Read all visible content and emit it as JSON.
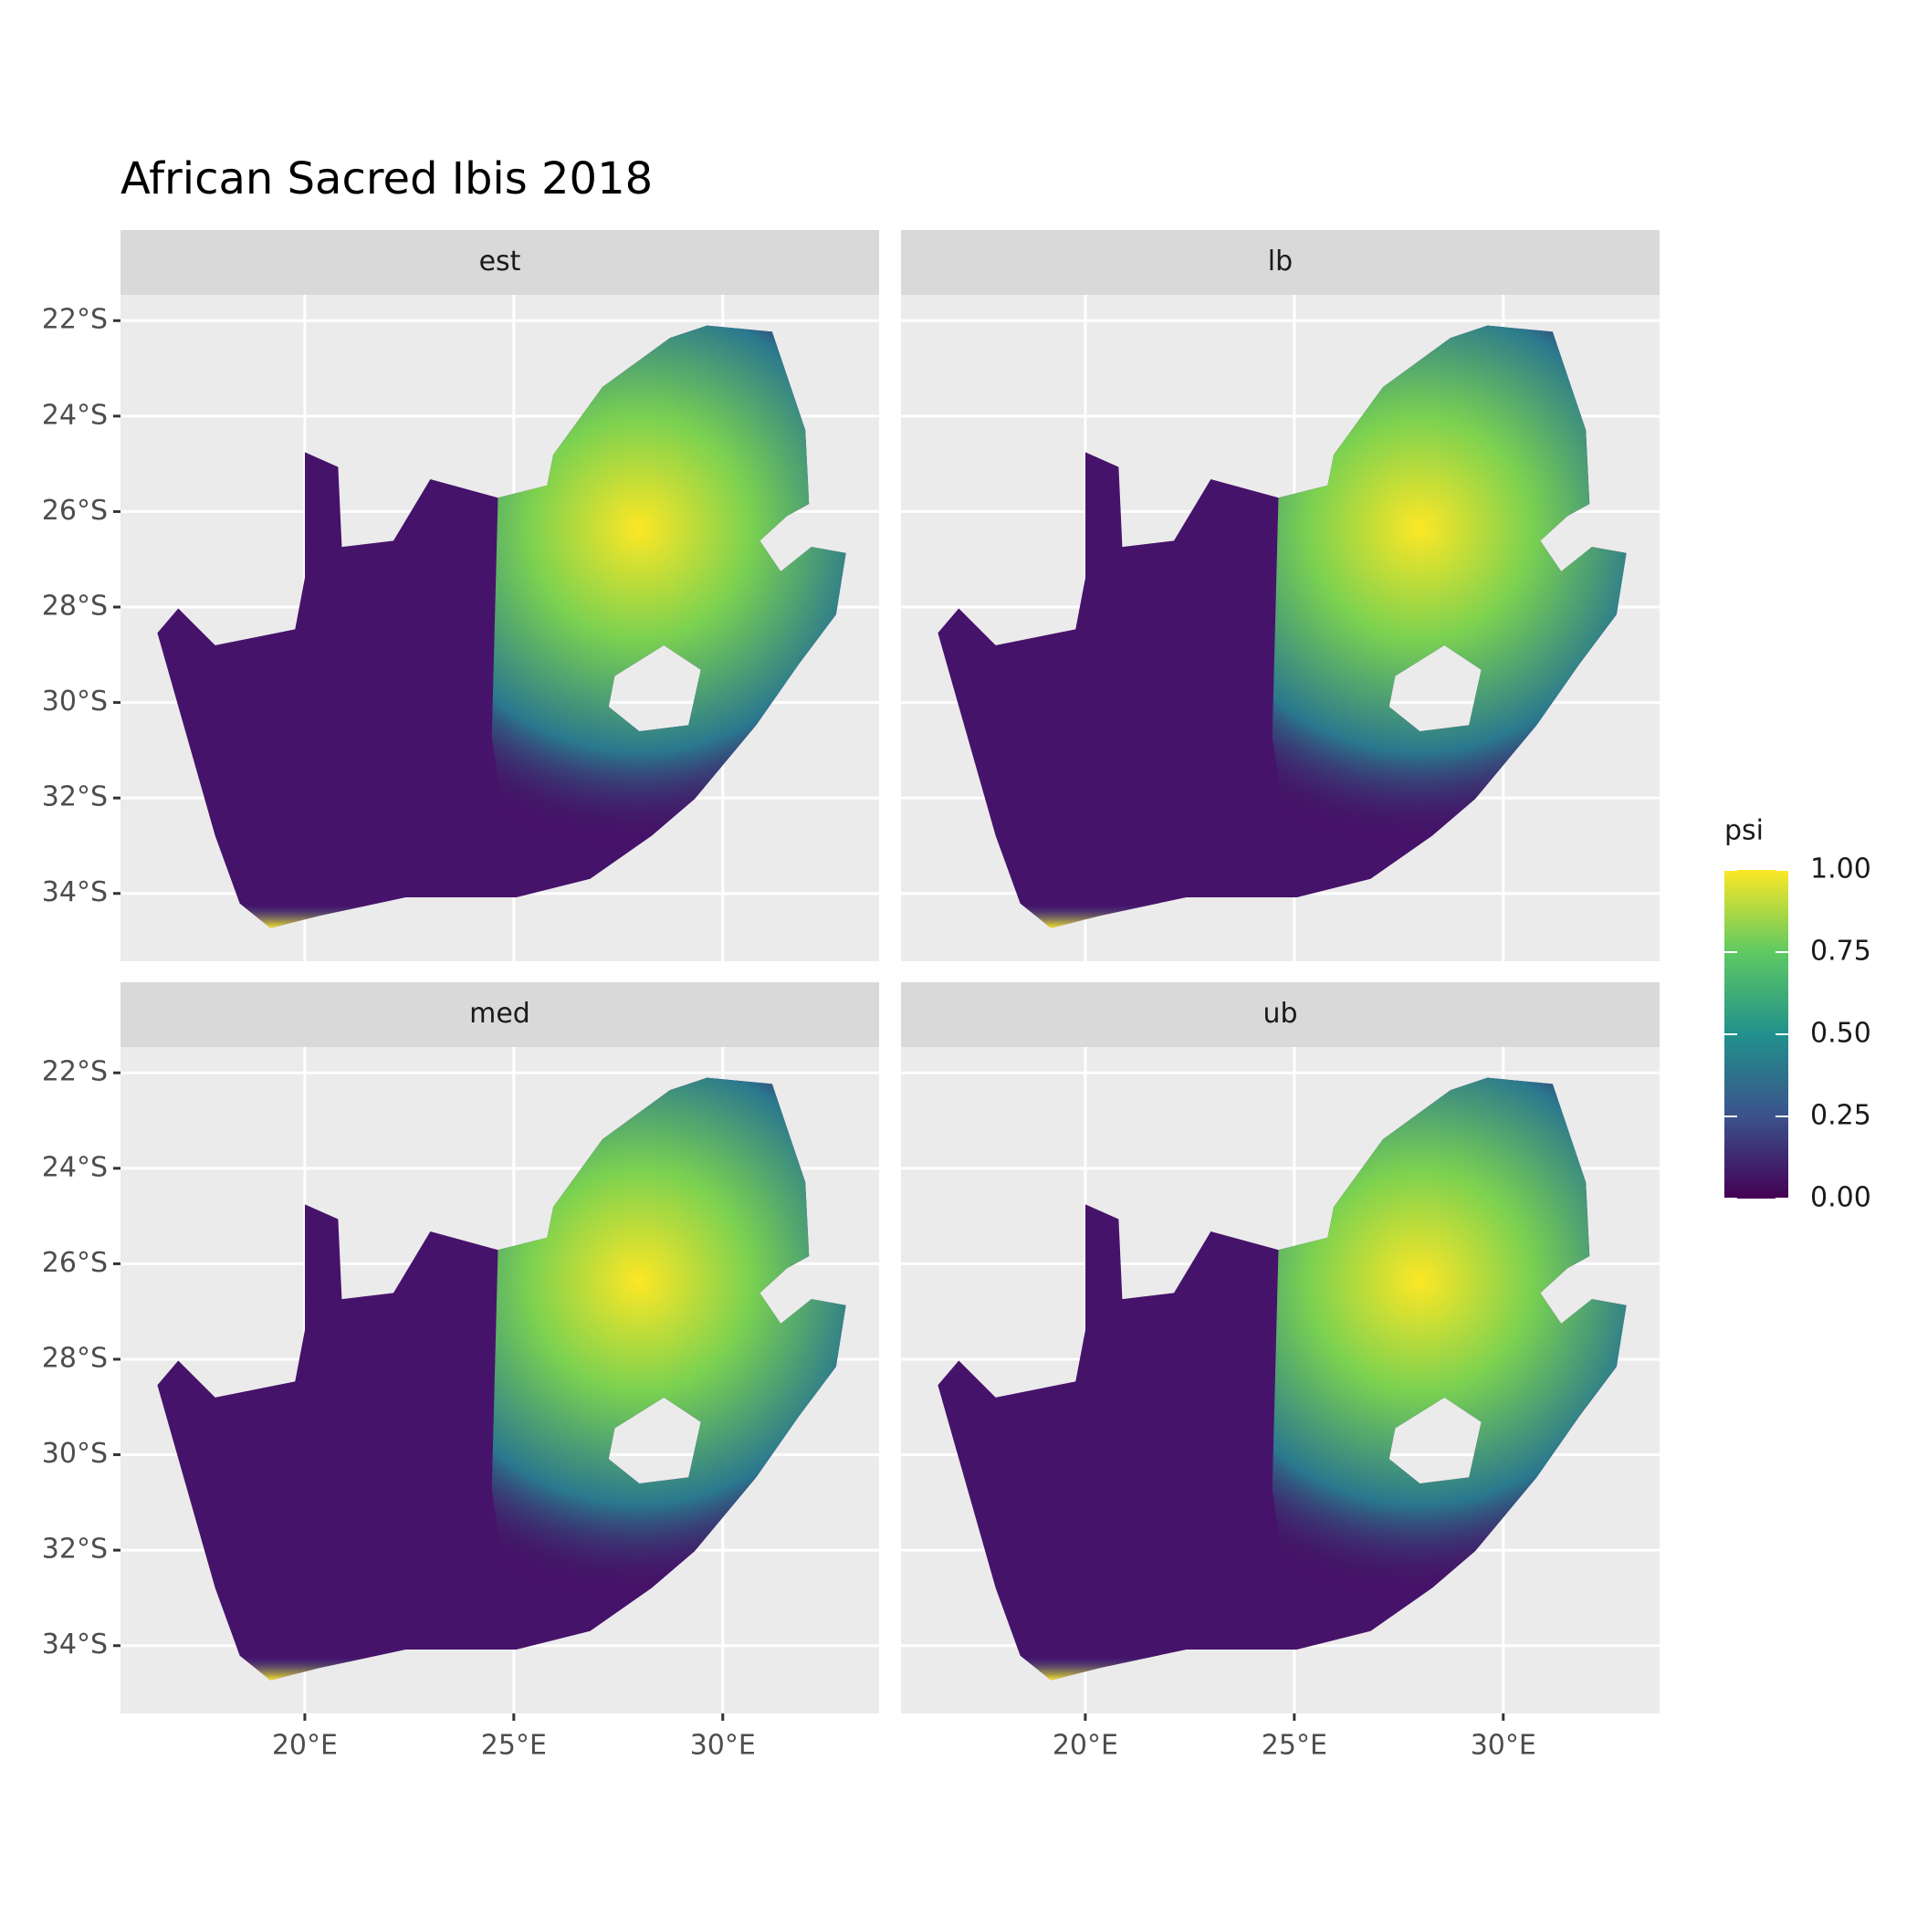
{
  "chart_data": {
    "type": "map",
    "title": "African Sacred Ibis 2018",
    "facets": [
      "est",
      "lb",
      "med",
      "ub"
    ],
    "xlim": [
      15.59,
      33.74
    ],
    "ylim": [
      -35.42,
      -21.46
    ],
    "xticks": [
      {
        "value": 20,
        "label": "20°E"
      },
      {
        "value": 25,
        "label": "25°E"
      },
      {
        "value": 30,
        "label": "30°E"
      }
    ],
    "yticks": [
      {
        "value": -22,
        "label": "22°S"
      },
      {
        "value": -24,
        "label": "24°S"
      },
      {
        "value": -26,
        "label": "26°S"
      },
      {
        "value": -28,
        "label": "28°S"
      },
      {
        "value": -30,
        "label": "30°S"
      },
      {
        "value": -32,
        "label": "32°S"
      },
      {
        "value": -34,
        "label": "34°S"
      }
    ],
    "grid": true,
    "legend": {
      "title": "psi",
      "lim": [
        0,
        1
      ],
      "ticks": [
        {
          "value": 0,
          "label": "0.00"
        },
        {
          "value": 0.25,
          "label": "0.25"
        },
        {
          "value": 0.5,
          "label": "0.50"
        },
        {
          "value": 0.75,
          "label": "0.75"
        },
        {
          "value": 1,
          "label": "1.00"
        }
      ]
    }
  }
}
